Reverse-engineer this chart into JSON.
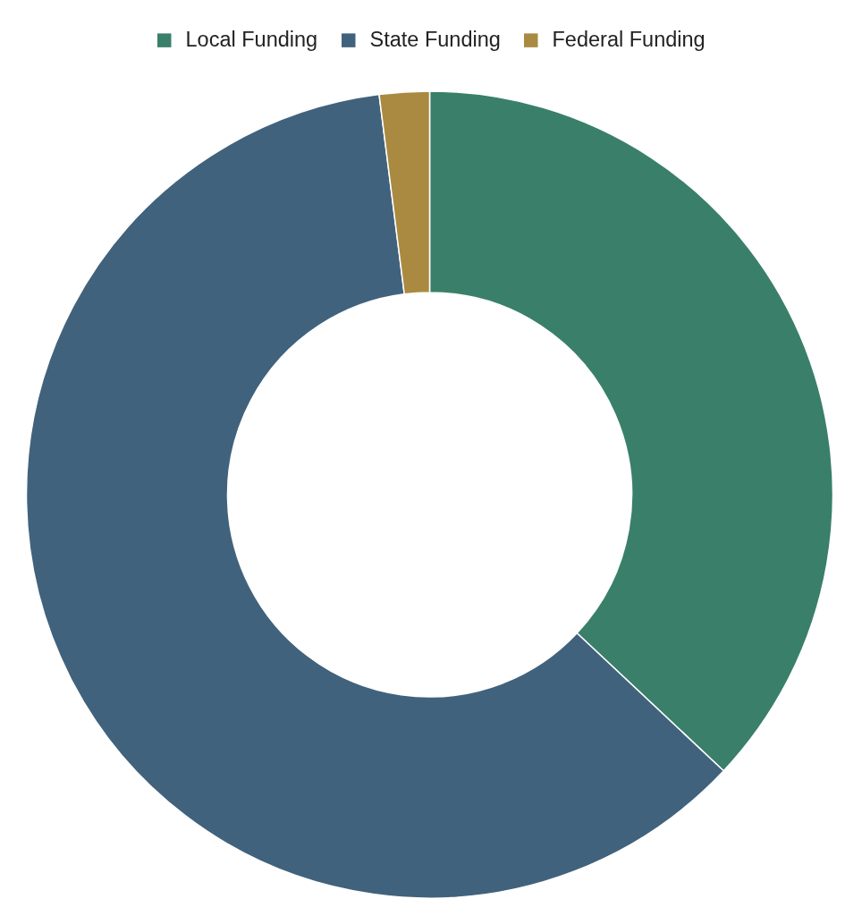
{
  "chart_data": {
    "type": "donut",
    "categories": [
      "Local Funding",
      "State Funding",
      "Federal Funding"
    ],
    "values": [
      37,
      61,
      2
    ],
    "colors": [
      "#3a7f6a",
      "#41627c",
      "#a98a40"
    ],
    "legend": "top"
  }
}
